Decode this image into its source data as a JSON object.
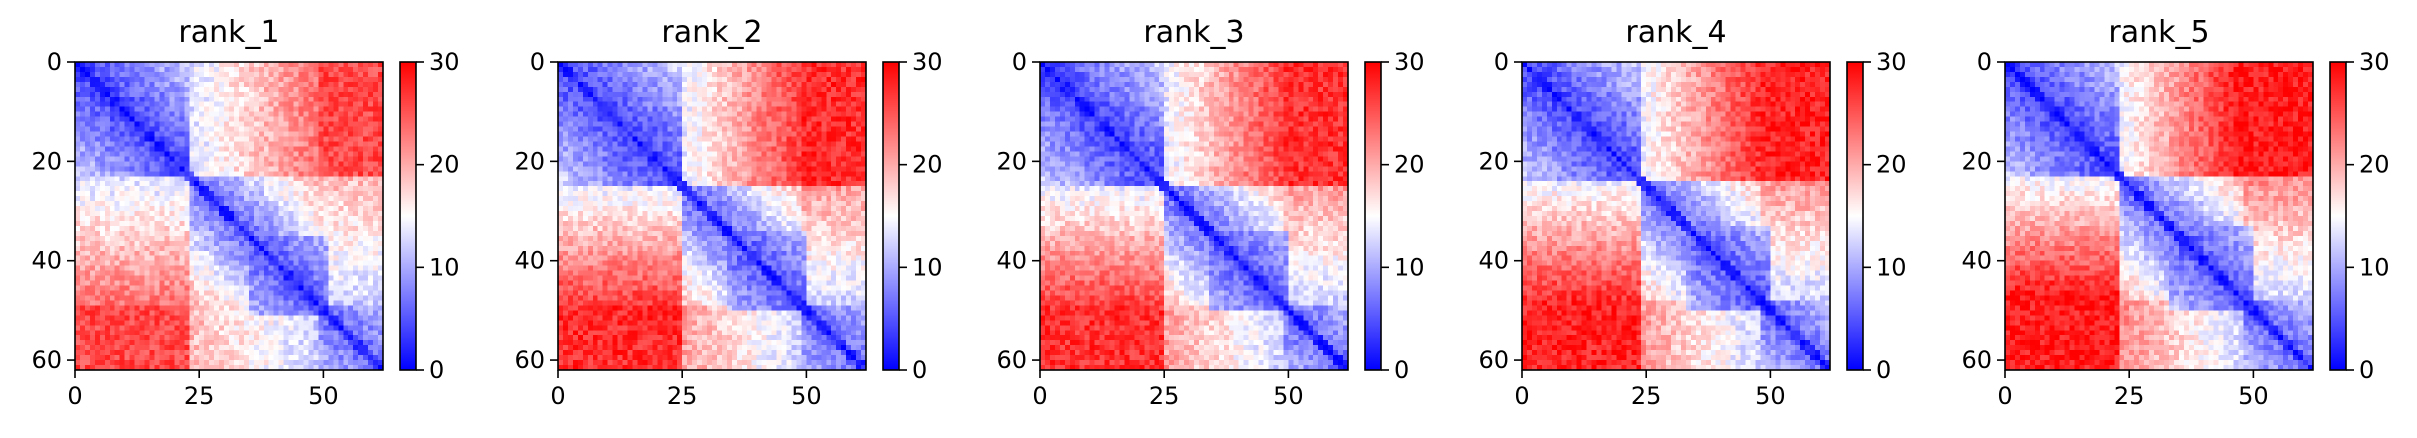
{
  "chart_data": {
    "type": "heatmap",
    "title": "",
    "colormap": {
      "name": "bwr",
      "low": "#0000ff",
      "mid": "#ffffff",
      "high": "#ff0000"
    },
    "matrix_size": 62,
    "x_ticks": [
      0,
      25,
      50
    ],
    "y_ticks": [
      0,
      20,
      40,
      60
    ],
    "colorbar": {
      "range": [
        0,
        30
      ],
      "ticks": [
        0,
        10,
        20,
        30
      ]
    },
    "panels": [
      {
        "title": "rank_1",
        "near_block_end": 23,
        "far_block_start": 49,
        "mid_gap": 0.52,
        "secondary_domain": [
          37,
          49
        ],
        "cross_mid": 0.45,
        "noise_seed": 11
      },
      {
        "title": "rank_2",
        "near_block_end": 25,
        "far_block_start": 49,
        "mid_gap": 0.68,
        "secondary_domain": [
          36,
          48
        ],
        "cross_mid": 0.6,
        "noise_seed": 23
      },
      {
        "title": "rank_3",
        "near_block_end": 25,
        "far_block_start": 49,
        "mid_gap": 0.65,
        "secondary_domain": [
          36,
          48
        ],
        "cross_mid": 0.6,
        "noise_seed": 37
      },
      {
        "title": "rank_4",
        "near_block_end": 24,
        "far_block_start": 48,
        "mid_gap": 0.72,
        "secondary_domain": [
          35,
          48
        ],
        "cross_mid": 0.62,
        "noise_seed": 41
      },
      {
        "title": "rank_5",
        "near_block_end": 23,
        "far_block_start": 48,
        "mid_gap": 0.76,
        "secondary_domain": [
          35,
          48
        ],
        "cross_mid": 0.66,
        "noise_seed": 53
      }
    ]
  }
}
